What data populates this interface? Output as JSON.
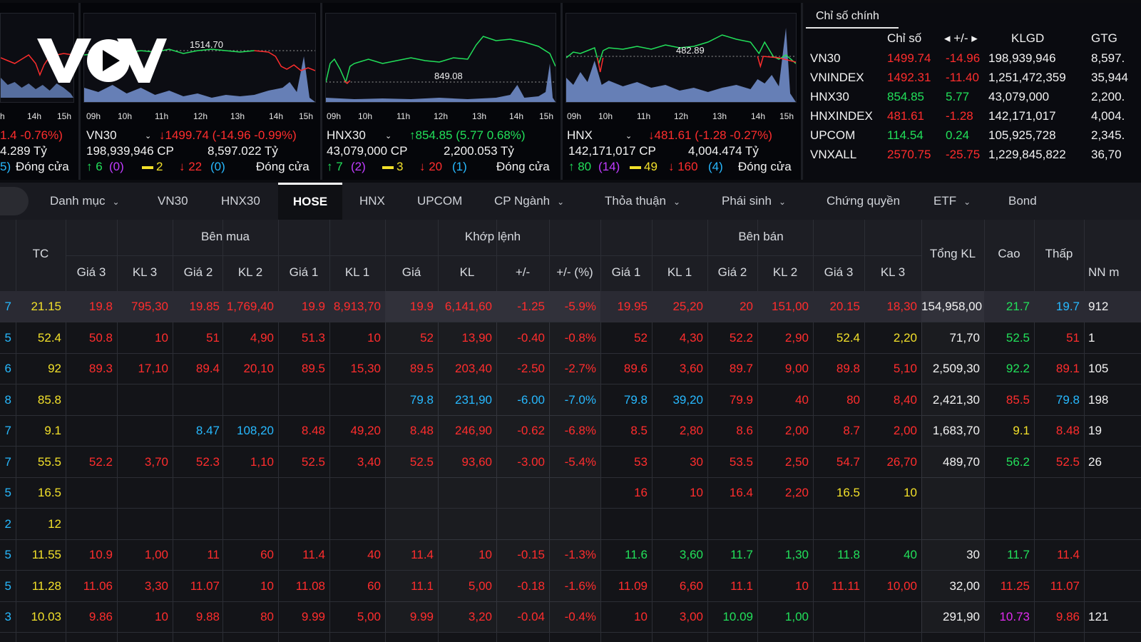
{
  "panels": [
    {
      "partial": true,
      "times": [
        "h",
        "14h",
        "15h"
      ],
      "line1": "1.4 -0.76%)",
      "line2": "4.289 Tỷ",
      "line3a": "5)",
      "line3b": "Đóng cửa"
    },
    {
      "name": "VN30",
      "chart_label": "1514.70",
      "times": [
        "09h",
        "10h",
        "11h",
        "12h",
        "13h",
        "14h",
        "15h"
      ],
      "change": "↓1499.74 (-14.96 -0.99%)",
      "volume": "198,939,946 CP",
      "value": "8,597.022 Tỷ",
      "up": "↑ 6",
      "up_ceiling": "(0)",
      "flat": "2",
      "down": "↓ 22",
      "down_floor": "(0)",
      "status": "Đóng cửa"
    },
    {
      "name": "HNX30",
      "chart_label": "849.08",
      "times": [
        "09h",
        "10h",
        "11h",
        "12h",
        "13h",
        "14h",
        "15h"
      ],
      "change": "↑854.85 (5.77 0.68%)",
      "volume": "43,079,000 CP",
      "value": "2,200.053 Tỷ",
      "up": "↑ 7",
      "up_ceiling": "(2)",
      "flat": "3",
      "down": "↓ 20",
      "down_floor": "(1)",
      "status": "Đóng cửa"
    },
    {
      "name": "HNX",
      "chart_label": "482.89",
      "times": [
        "09h",
        "10h",
        "11h",
        "12h",
        "13h",
        "14h",
        "15h"
      ],
      "change": "↓481.61 (-1.28 -0.27%)",
      "volume": "142,171,017 CP",
      "value": "4,004.474 Tỷ",
      "up": "↑ 80",
      "up_ceiling": "(14)",
      "flat": "49",
      "down": "↓ 160",
      "down_floor": "(4)",
      "status": "Đóng cửa"
    }
  ],
  "indices": {
    "tab": "Chỉ số chính",
    "headers": [
      "Chỉ số",
      "◂ +/- ▸",
      "KLGD",
      "GTG"
    ],
    "rows": [
      {
        "name": "VN30",
        "value": "1499.74",
        "change": "-14.96",
        "vol": "198,939,946",
        "gt": "8,597.",
        "color": "#ff2d2d"
      },
      {
        "name": "VNINDEX",
        "value": "1492.31",
        "change": "-11.40",
        "vol": "1,251,472,359",
        "gt": "35,944",
        "color": "#ff2d2d"
      },
      {
        "name": "HNX30",
        "value": "854.85",
        "change": "5.77",
        "vol": "43,079,000",
        "gt": "2,200.",
        "color": "#22e05a"
      },
      {
        "name": "HNXINDEX",
        "value": "481.61",
        "change": "-1.28",
        "vol": "142,171,017",
        "gt": "4,004.",
        "color": "#ff2d2d"
      },
      {
        "name": "UPCOM",
        "value": "114.54",
        "change": "0.24",
        "vol": "105,925,728",
        "gt": "2,345.",
        "color": "#22e05a"
      },
      {
        "name": "VNXALL",
        "value": "2570.75",
        "change": "-25.75",
        "vol": "1,229,845,822",
        "gt": "36,70",
        "color": "#ff2d2d"
      }
    ]
  },
  "nav": [
    "Danh mục",
    "VN30",
    "HNX30",
    "HOSE",
    "HNX",
    "UPCOM",
    "CP Ngành",
    "Thỏa thuận",
    "Phái sinh",
    "Chứng quyền",
    "ETF",
    "Bond"
  ],
  "table": {
    "group_headers": [
      "Bên mua",
      "Khớp lệnh",
      "Bên bán"
    ],
    "headers": [
      "TC",
      "Giá 3",
      "KL 3",
      "Giá 2",
      "KL 2",
      "Giá 1",
      "KL 1",
      "Giá",
      "KL",
      "+/-",
      "+/- (%)",
      "Giá 1",
      "KL 1",
      "Giá 2",
      "KL 2",
      "Giá 3",
      "KL 3",
      "Tổng KL",
      "Cao",
      "Thấp",
      "NN m"
    ],
    "rows": [
      [
        "7",
        "21.15",
        "19.8",
        "795,30",
        "19.85",
        "1,769,40",
        "19.9",
        "8,913,70",
        "19.9",
        "6,141,60",
        "-1.25",
        "-5.9%",
        "19.95",
        "25,20",
        "20",
        "151,00",
        "20.15",
        "18,30",
        "154,958,00",
        "21.7",
        "19.7",
        "912"
      ],
      [
        "5",
        "52.4",
        "50.8",
        "10",
        "51",
        "4,90",
        "51.3",
        "10",
        "52",
        "13,90",
        "-0.40",
        "-0.8%",
        "52",
        "4,30",
        "52.2",
        "2,90",
        "52.4",
        "2,20",
        "71,70",
        "52.5",
        "51",
        "1"
      ],
      [
        "6",
        "92",
        "89.3",
        "17,10",
        "89.4",
        "20,10",
        "89.5",
        "15,30",
        "89.5",
        "203,40",
        "-2.50",
        "-2.7%",
        "89.6",
        "3,60",
        "89.7",
        "9,00",
        "89.8",
        "5,10",
        "2,509,30",
        "92.2",
        "89.1",
        "105"
      ],
      [
        "8",
        "85.8",
        "",
        "",
        "",
        "",
        "",
        "",
        "79.8",
        "231,90",
        "-6.00",
        "-7.0%",
        "79.8",
        "39,20",
        "79.9",
        "40",
        "80",
        "8,40",
        "2,421,30",
        "85.5",
        "79.8",
        "198"
      ],
      [
        "7",
        "9.1",
        "",
        "",
        "8.47",
        "108,20",
        "8.48",
        "49,20",
        "8.48",
        "246,90",
        "-0.62",
        "-6.8%",
        "8.5",
        "2,80",
        "8.6",
        "2,00",
        "8.7",
        "2,00",
        "1,683,70",
        "9.1",
        "8.48",
        "19"
      ],
      [
        "7",
        "55.5",
        "52.2",
        "3,70",
        "52.3",
        "1,10",
        "52.5",
        "3,40",
        "52.5",
        "93,60",
        "-3.00",
        "-5.4%",
        "53",
        "30",
        "53.5",
        "2,50",
        "54.7",
        "26,70",
        "489,70",
        "56.2",
        "52.5",
        "26"
      ],
      [
        "5",
        "16.5",
        "",
        "",
        "",
        "",
        "",
        "",
        "",
        "",
        "",
        "",
        "16",
        "10",
        "16.4",
        "2,20",
        "16.5",
        "10",
        "",
        "",
        "",
        ""
      ],
      [
        "2",
        "12",
        "",
        "",
        "",
        "",
        "",
        "",
        "",
        "",
        "",
        "",
        "",
        "",
        "",
        "",
        "",
        "",
        "",
        "",
        "",
        ""
      ],
      [
        "5",
        "11.55",
        "10.9",
        "1,00",
        "11",
        "60",
        "11.4",
        "40",
        "11.4",
        "10",
        "-0.15",
        "-1.3%",
        "11.6",
        "3,60",
        "11.7",
        "1,30",
        "11.8",
        "40",
        "30",
        "11.7",
        "11.4",
        ""
      ],
      [
        "5",
        "11.28",
        "11.06",
        "3,30",
        "11.07",
        "10",
        "11.08",
        "60",
        "11.1",
        "5,00",
        "-0.18",
        "-1.6%",
        "11.09",
        "6,60",
        "11.1",
        "10",
        "11.11",
        "10,00",
        "32,00",
        "11.25",
        "11.07",
        ""
      ],
      [
        "3",
        "10.03",
        "9.86",
        "10",
        "9.88",
        "80",
        "9.99",
        "5,00",
        "9.99",
        "3,20",
        "-0.04",
        "-0.4%",
        "10",
        "3,00",
        "10.09",
        "1,00",
        "",
        "",
        "291,90",
        "10.73",
        "9.86",
        "121"
      ]
    ],
    "row_colors": [
      [
        "c",
        "y",
        "r",
        "r",
        "r",
        "r",
        "r",
        "r",
        "r",
        "r",
        "r",
        "r",
        "r",
        "r",
        "r",
        "r",
        "r",
        "r",
        "w",
        "g",
        "c",
        "w"
      ],
      [
        "c",
        "y",
        "r",
        "r",
        "r",
        "r",
        "r",
        "r",
        "r",
        "r",
        "r",
        "r",
        "r",
        "r",
        "r",
        "r",
        "y",
        "y",
        "w",
        "g",
        "r",
        "w"
      ],
      [
        "c",
        "y",
        "r",
        "r",
        "r",
        "r",
        "r",
        "r",
        "r",
        "r",
        "r",
        "r",
        "r",
        "r",
        "r",
        "r",
        "r",
        "r",
        "w",
        "g",
        "r",
        "w"
      ],
      [
        "c",
        "y",
        "r",
        "r",
        "r",
        "r",
        "r",
        "r",
        "c",
        "c",
        "c",
        "c",
        "c",
        "c",
        "r",
        "r",
        "r",
        "r",
        "w",
        "r",
        "c",
        "w"
      ],
      [
        "c",
        "y",
        "r",
        "r",
        "c",
        "c",
        "r",
        "r",
        "r",
        "r",
        "r",
        "r",
        "r",
        "r",
        "r",
        "r",
        "r",
        "r",
        "w",
        "y",
        "r",
        "w"
      ],
      [
        "c",
        "y",
        "r",
        "r",
        "r",
        "r",
        "r",
        "r",
        "r",
        "r",
        "r",
        "r",
        "r",
        "r",
        "r",
        "r",
        "r",
        "r",
        "w",
        "g",
        "r",
        "w"
      ],
      [
        "c",
        "y",
        "r",
        "r",
        "r",
        "r",
        "r",
        "r",
        "r",
        "r",
        "r",
        "r",
        "r",
        "r",
        "r",
        "r",
        "y",
        "y",
        "w",
        "w",
        "w",
        "w"
      ],
      [
        "c",
        "y",
        "r",
        "r",
        "r",
        "r",
        "r",
        "r",
        "r",
        "r",
        "r",
        "r",
        "r",
        "r",
        "r",
        "r",
        "r",
        "r",
        "w",
        "w",
        "w",
        "w"
      ],
      [
        "c",
        "y",
        "r",
        "r",
        "r",
        "r",
        "r",
        "r",
        "r",
        "r",
        "r",
        "r",
        "g",
        "g",
        "g",
        "g",
        "g",
        "g",
        "w",
        "g",
        "r",
        "w"
      ],
      [
        "c",
        "y",
        "r",
        "r",
        "r",
        "r",
        "r",
        "r",
        "r",
        "r",
        "r",
        "r",
        "r",
        "r",
        "r",
        "r",
        "r",
        "r",
        "w",
        "r",
        "r",
        "w"
      ],
      [
        "c",
        "y",
        "r",
        "r",
        "r",
        "r",
        "r",
        "r",
        "r",
        "r",
        "r",
        "r",
        "r",
        "r",
        "g",
        "g",
        "r",
        "r",
        "w",
        "m",
        "r",
        "w"
      ]
    ]
  }
}
